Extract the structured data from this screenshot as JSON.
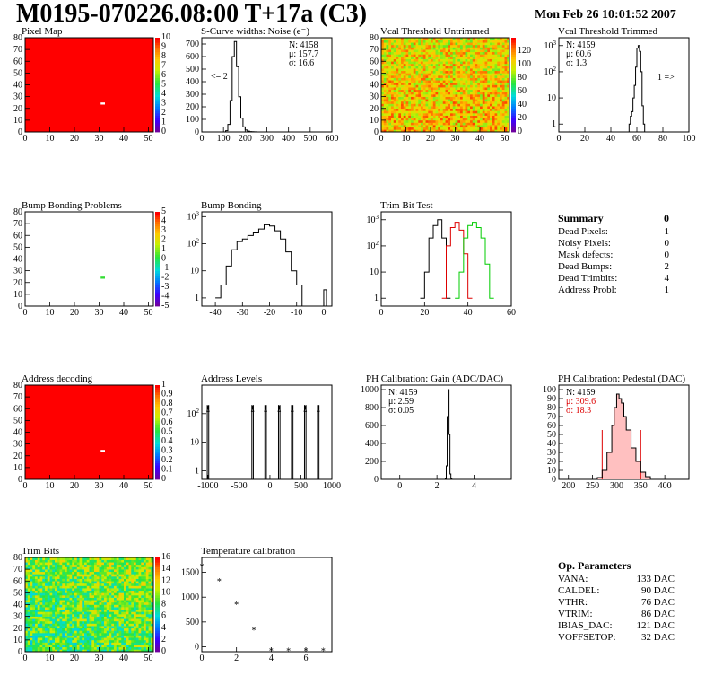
{
  "header": {
    "title": "M0195-070226.08:00 T+17a (C3)",
    "date": "Mon Feb 26 10:01:52 2007"
  },
  "summary": {
    "title": "Summary",
    "value": "0",
    "rows": [
      {
        "label": "Dead Pixels:",
        "value": "1"
      },
      {
        "label": "Noisy Pixels:",
        "value": "0"
      },
      {
        "label": "Mask defects:",
        "value": "0"
      },
      {
        "label": "Dead Bumps:",
        "value": "2"
      },
      {
        "label": "Dead Trimbits:",
        "value": "4"
      },
      {
        "label": "Address Probl:",
        "value": "1"
      }
    ]
  },
  "op_parameters": {
    "title": "Op. Parameters",
    "rows": [
      {
        "label": "VANA:",
        "value": "133 DAC"
      },
      {
        "label": "CALDEL:",
        "value": "90 DAC"
      },
      {
        "label": "VTHR:",
        "value": "76 DAC"
      },
      {
        "label": "VTRIM:",
        "value": "86 DAC"
      },
      {
        "label": "IBIAS_DAC:",
        "value": "121 DAC"
      },
      {
        "label": "VOFFSETOP:",
        "value": "32 DAC"
      }
    ]
  },
  "chart_data": [
    {
      "id": "pixel-map",
      "type": "heatmap",
      "title": "Pixel Map",
      "xlim": [
        0,
        52
      ],
      "ylim": [
        0,
        80
      ],
      "xticks": [
        0,
        10,
        20,
        30,
        40,
        50
      ],
      "yticks": [
        0,
        10,
        20,
        30,
        40,
        50,
        60,
        70,
        80
      ],
      "zlim": [
        0,
        10
      ],
      "zticks": [
        0,
        1,
        2,
        3,
        4,
        5,
        6,
        7,
        8,
        9,
        10
      ],
      "fill": "#ff0000",
      "special_cells": [
        {
          "x": 31,
          "y": 24,
          "color": "#ffffff"
        }
      ]
    },
    {
      "id": "scurve-noise",
      "type": "line",
      "title": "S-Curve widths: Noise (e⁻)",
      "xlim": [
        0,
        600
      ],
      "ylim": [
        0,
        750
      ],
      "xticks": [
        0,
        100,
        200,
        300,
        400,
        500,
        600
      ],
      "yticks": [
        0,
        100,
        200,
        300,
        400,
        500,
        600,
        700
      ],
      "stats": [
        "N: 4158",
        "μ: 157.7",
        "σ: 16.6"
      ],
      "annotation": "<= 2",
      "x": [
        100,
        110,
        120,
        130,
        140,
        150,
        160,
        170,
        180,
        190,
        200,
        210,
        220,
        230,
        240,
        250
      ],
      "y": [
        0,
        10,
        60,
        250,
        600,
        720,
        520,
        280,
        110,
        40,
        15,
        6,
        3,
        2,
        1,
        0
      ]
    },
    {
      "id": "vcal-untrimmed",
      "type": "heatmap",
      "title": "Vcal Threshold Untrimmed",
      "xlim": [
        0,
        52
      ],
      "ylim": [
        0,
        80
      ],
      "xticks": [
        0,
        10,
        20,
        30,
        40,
        50
      ],
      "yticks": [
        0,
        10,
        20,
        30,
        40,
        50,
        60,
        70,
        80
      ],
      "zlim": [
        0,
        140
      ],
      "zticks": [
        0,
        20,
        40,
        60,
        80,
        100,
        120
      ]
    },
    {
      "id": "vcal-trimmed",
      "type": "line",
      "title": "Vcal Threshold Trimmed",
      "logy": true,
      "xlim": [
        0,
        100
      ],
      "ylim": [
        0.5,
        2000
      ],
      "xticks": [
        0,
        20,
        40,
        60,
        80,
        100
      ],
      "yticks": [
        1,
        10,
        100,
        1000
      ],
      "stats": [
        "N: 4159",
        "μ: 60.6",
        "σ: 1.3"
      ],
      "annotation": "1 =>",
      "x": [
        53,
        54,
        55,
        56,
        57,
        58,
        59,
        60,
        61,
        62,
        63,
        64,
        65,
        66
      ],
      "y": [
        0,
        1,
        2,
        3,
        10,
        30,
        150,
        800,
        1000,
        600,
        100,
        5,
        1,
        0
      ]
    },
    {
      "id": "bump-bonding-map",
      "type": "heatmap",
      "title": "Bump Bonding Problems",
      "xlim": [
        0,
        52
      ],
      "ylim": [
        0,
        80
      ],
      "xticks": [
        0,
        10,
        20,
        30,
        40,
        50
      ],
      "yticks": [
        0,
        10,
        20,
        30,
        40,
        50,
        60,
        70,
        80
      ],
      "zlim": [
        -5,
        5
      ],
      "zticks": [
        -5,
        -4,
        -3,
        -2,
        -1,
        0,
        1,
        2,
        3,
        4,
        5
      ],
      "fill": "#ffffff",
      "special_cells": [
        {
          "x": 31,
          "y": 24,
          "color": "#33dd33"
        }
      ]
    },
    {
      "id": "bump-bonding",
      "type": "line",
      "title": "Bump Bonding",
      "logy": true,
      "xlim": [
        -45,
        3
      ],
      "ylim": [
        0.5,
        1500
      ],
      "xticks": [
        -40,
        -30,
        -20,
        -10,
        0
      ],
      "yticks": [
        1,
        10,
        100,
        1000
      ],
      "x": [
        -40,
        -38,
        -36,
        -34,
        -32,
        -30,
        -28,
        -26,
        -24,
        -22,
        -20,
        -18,
        -16,
        -14,
        -12,
        -10,
        -8,
        -6,
        -4,
        -2,
        0,
        1
      ],
      "y": [
        1,
        3,
        15,
        60,
        120,
        150,
        200,
        250,
        350,
        500,
        450,
        300,
        150,
        50,
        10,
        3,
        0,
        0,
        0,
        0,
        2,
        0
      ]
    },
    {
      "id": "trim-bit-test",
      "type": "line",
      "title": "Trim Bit Test",
      "logy": true,
      "xlim": [
        0,
        60
      ],
      "ylim": [
        0.5,
        2000
      ],
      "xticks": [
        0,
        20,
        40,
        60
      ],
      "yticks": [
        1,
        10,
        100,
        1000
      ],
      "series": [
        {
          "color": "#000000",
          "x": [
            18,
            20,
            22,
            24,
            26,
            28,
            30
          ],
          "y": [
            1,
            10,
            200,
            600,
            1000,
            200,
            1
          ]
        },
        {
          "color": "#dd0000",
          "x": [
            28,
            30,
            32,
            34,
            36,
            38,
            40
          ],
          "y": [
            1,
            100,
            500,
            800,
            400,
            50,
            1
          ]
        },
        {
          "color": "#00cc00",
          "x": [
            34,
            36,
            38,
            40,
            42,
            44,
            46,
            48,
            50
          ],
          "y": [
            1,
            10,
            200,
            600,
            800,
            500,
            200,
            20,
            1
          ]
        }
      ]
    },
    {
      "id": "address-decoding",
      "type": "heatmap",
      "title": "Address decoding",
      "xlim": [
        0,
        52
      ],
      "ylim": [
        0,
        80
      ],
      "xticks": [
        0,
        10,
        20,
        30,
        40,
        50
      ],
      "yticks": [
        0,
        10,
        20,
        30,
        40,
        50,
        60,
        70,
        80
      ],
      "zlim": [
        0,
        1
      ],
      "zticks": [
        0,
        0.1,
        0.2,
        0.3,
        0.4,
        0.5,
        0.6,
        0.7,
        0.8,
        0.9,
        1
      ],
      "fill": "#ff0000",
      "special_cells": [
        {
          "x": 31,
          "y": 24,
          "color": "#ffffff"
        }
      ]
    },
    {
      "id": "address-levels",
      "type": "line",
      "title": "Address Levels",
      "logy": true,
      "xlim": [
        -1100,
        1000
      ],
      "ylim": [
        0.5,
        1000
      ],
      "xticks": [
        -1000,
        -500,
        0,
        500,
        1000
      ],
      "yticks": [
        1,
        10,
        100
      ],
      "peaks": [
        -1000,
        -280,
        -70,
        150,
        360,
        570,
        780
      ],
      "peak_height": 200
    },
    {
      "id": "ph-gain",
      "type": "line",
      "title": "PH Calibration: Gain (ADC/DAC)",
      "xlim": [
        -1,
        6
      ],
      "ylim": [
        0,
        1050
      ],
      "xticks": [
        0,
        2,
        4
      ],
      "yticks": [
        0,
        200,
        400,
        600,
        800,
        1000
      ],
      "stats": [
        "N: 4159",
        "μ: 2.59",
        "σ: 0.05"
      ],
      "x": [
        2.4,
        2.45,
        2.5,
        2.55,
        2.6,
        2.65,
        2.7,
        2.75,
        2.8
      ],
      "y": [
        0,
        5,
        150,
        700,
        1000,
        500,
        60,
        5,
        0
      ]
    },
    {
      "id": "ph-pedestal",
      "type": "line",
      "title": "PH Calibration: Pedestal (DAC)",
      "xlim": [
        180,
        450
      ],
      "ylim": [
        0,
        105
      ],
      "xticks": [
        200,
        250,
        300,
        350,
        400
      ],
      "yticks": [
        0,
        10,
        20,
        30,
        40,
        50,
        60,
        70,
        80,
        90,
        100
      ],
      "stats": [
        "N: 4159",
        "μ: 309.6",
        "σ: 18.3"
      ],
      "stat_colors": [
        "#000000",
        "#dd0000",
        "#dd0000"
      ],
      "x": [
        250,
        260,
        270,
        280,
        290,
        295,
        300,
        305,
        310,
        315,
        320,
        330,
        340,
        350,
        360,
        370
      ],
      "y": [
        0,
        2,
        10,
        30,
        60,
        80,
        95,
        90,
        85,
        70,
        55,
        35,
        20,
        8,
        3,
        0
      ],
      "markers": [
        270,
        350
      ]
    },
    {
      "id": "trim-bits",
      "type": "heatmap",
      "title": "Trim Bits",
      "xlim": [
        0,
        52
      ],
      "ylim": [
        0,
        80
      ],
      "xticks": [
        0,
        10,
        20,
        30,
        40,
        50
      ],
      "yticks": [
        0,
        10,
        20,
        30,
        40,
        50,
        60,
        70,
        80
      ],
      "zlim": [
        0,
        16
      ],
      "zticks": [
        0,
        2,
        4,
        6,
        8,
        10,
        12,
        14,
        16
      ]
    },
    {
      "id": "temperature-calibration",
      "type": "scatter",
      "title": "Temperature calibration",
      "xlim": [
        0,
        7.5
      ],
      "ylim": [
        -100,
        1800
      ],
      "xticks": [
        0,
        2,
        4,
        6
      ],
      "yticks": [
        0,
        500,
        1000,
        1500
      ],
      "x": [
        0,
        1,
        2,
        3,
        4,
        5,
        6,
        7
      ],
      "y": [
        1700,
        1400,
        930,
        420,
        0,
        0,
        0,
        0
      ]
    }
  ]
}
